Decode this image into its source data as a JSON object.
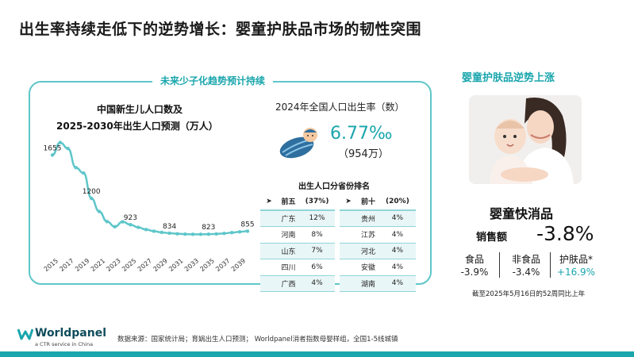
{
  "title": "出生率持续走低下的逆势增长：婴童护肤品市场的韧性突围",
  "left_panel": {
    "title": "未来少子化趋势预计持续",
    "chart_title_line1": "中国新生儿人口数及",
    "chart_title_line2": "2025-2030年出生人口预测（万人）"
  },
  "chart_data": {
    "type": "line",
    "title": "中国新生儿人口数及2025-2030年出生人口预测（万人）",
    "x": [
      2015,
      2016,
      2017,
      2018,
      2019,
      2020,
      2021,
      2022,
      2023,
      2024,
      2025,
      2026,
      2027,
      2028,
      2029,
      2030,
      2031,
      2032,
      2033,
      2034,
      2035,
      2036,
      2037,
      2038,
      2039,
      2040
    ],
    "x_ticks": [
      "2015",
      "2017",
      "2019",
      "2021",
      "2023",
      "2025",
      "2027",
      "2029",
      "2031",
      "2033",
      "2035",
      "2037",
      "2039"
    ],
    "values": [
      1655,
      1786,
      1723,
      1523,
      1465,
      1200,
      1062,
      956,
      902,
      954,
      923,
      895,
      872,
      855,
      842,
      834,
      828,
      824,
      822,
      822,
      823,
      826,
      832,
      840,
      848,
      855
    ],
    "labeled_points": [
      {
        "x": 2015,
        "label": "1655"
      },
      {
        "x": 2020,
        "label": "1200"
      },
      {
        "x": 2025,
        "label": "923"
      },
      {
        "x": 2030,
        "label": "834"
      },
      {
        "x": 2035,
        "label": "823"
      },
      {
        "x": 2040,
        "label": "855"
      }
    ],
    "ylim": [
      700,
      1900
    ],
    "grid": false,
    "color": "#5ec6c9"
  },
  "birth_rate": {
    "title": "2024年全国人口出生率（数）",
    "value": "6.77‰",
    "count": "（954万）",
    "icon": "swaddled-baby-icon"
  },
  "province_ranking": {
    "title": "出生人口分省份排名",
    "top5": {
      "arrow": "➤",
      "header": "前五",
      "share": "(37%)",
      "rows": [
        {
          "name": "广东",
          "value": "12%"
        },
        {
          "name": "河南",
          "value": "8%"
        },
        {
          "name": "山东",
          "value": "7%"
        },
        {
          "name": "四川",
          "value": "6%"
        },
        {
          "name": "广西",
          "value": "4%"
        }
      ]
    },
    "top10": {
      "arrow": "➤",
      "header": "前十",
      "share": "(20%)",
      "rows": [
        {
          "name": "贵州",
          "value": "4%"
        },
        {
          "name": "江苏",
          "value": "4%"
        },
        {
          "name": "河北",
          "value": "4%"
        },
        {
          "name": "安徽",
          "value": "4%"
        },
        {
          "name": "湖南",
          "value": "4%"
        }
      ]
    }
  },
  "right_panel": {
    "title": "婴童护肤品逆势上涨",
    "photo": "mother-and-baby-photo",
    "fmcg_title": "婴童快消品",
    "sales_label": "销售额",
    "sales_value": "-3.8%",
    "categories": [
      {
        "name": "食品",
        "value": "-3.9%",
        "color": "#222222"
      },
      {
        "name": "非食品",
        "value": "-3.4%",
        "color": "#222222"
      },
      {
        "name": "护肤品*",
        "value": "+16.9%",
        "color": "#1aa6ad"
      }
    ],
    "footnote": "截至2025年5月16日的52周同比上年"
  },
  "footer": {
    "brand": "Worldpanel",
    "tagline": "a CTR service in China",
    "source": "数据来源：国家统计局；育娲出生人口预测；  Worldpanel消者指数母婴样组，全国1-5线城镇",
    "accent": "#1aa6ad"
  }
}
